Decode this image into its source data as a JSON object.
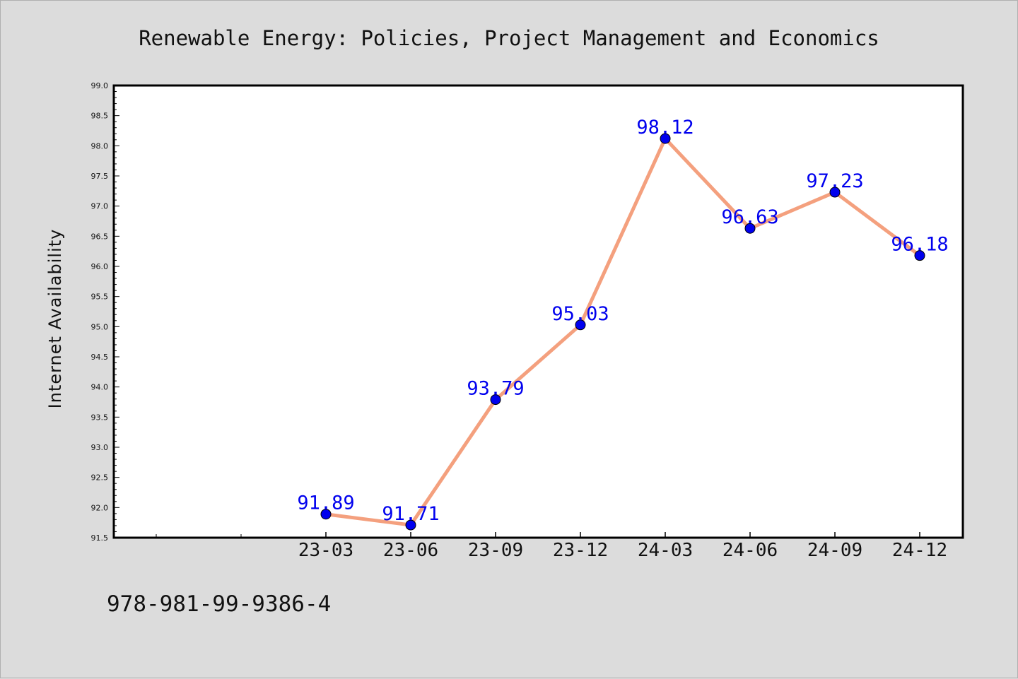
{
  "footer": {
    "code": "978-981-99-9386-4"
  },
  "chart_data": {
    "type": "line",
    "title": "Renewable Energy: Policies, Project Management and Economics",
    "xlabel": "",
    "ylabel": "Internet Availability",
    "categories": [
      "23-03",
      "23-06",
      "23-09",
      "23-12",
      "24-03",
      "24-06",
      "24-09",
      "24-12"
    ],
    "series": [
      {
        "values": [
          91.89,
          91.71,
          93.79,
          95.03,
          98.12,
          96.63,
          97.23,
          96.18
        ],
        "data_labels": [
          "91.89",
          "91.71",
          "93.79",
          "95.03",
          "98.12",
          "96.63",
          "97.23",
          "96.18"
        ],
        "line_color": "#f4a07e",
        "marker_color": "#0000ee",
        "label_color": "#0000ee"
      }
    ],
    "ylim": [
      91.5,
      99.0
    ],
    "yticks": [
      "91.5",
      "92.0",
      "92.5",
      "93.0",
      "93.5",
      "94.0",
      "94.5",
      "95.0",
      "95.5",
      "96.0",
      "96.5",
      "97.0",
      "97.5",
      "98.0",
      "98.5",
      "99.0"
    ],
    "grid": false,
    "legend": "none",
    "background_color": "#dcdcdc",
    "plot_background": "#ffffff"
  }
}
